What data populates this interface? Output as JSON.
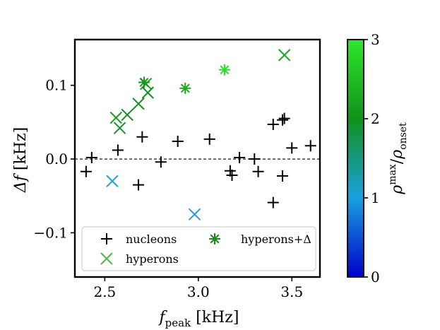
{
  "chart_data": {
    "type": "scatter",
    "xlabel_main": "f",
    "xlabel_sub": "peak",
    "xlabel_unit": "[kHz]",
    "ylabel_main": "Δf",
    "ylabel_unit": "[kHz]",
    "xlim": [
      2.34,
      3.65
    ],
    "ylim": [
      -0.16,
      0.162
    ],
    "xticks": [
      2.5,
      3.0,
      3.5
    ],
    "xtick_labels": [
      "2.5",
      "3.0",
      "3.5"
    ],
    "yticks": [
      -0.1,
      0.0,
      0.1
    ],
    "ytick_labels": [
      "−0.1",
      "0.0",
      "0.1"
    ],
    "reference_line_y": 0.0,
    "legend": {
      "position": "lower-center",
      "entries": [
        {
          "marker": "plus",
          "label": "nucleons",
          "color": "#000000"
        },
        {
          "marker": "x",
          "label": "hyperons",
          "color": "#4fb84f"
        },
        {
          "marker": "star",
          "label": "hyperons+Δ",
          "color": "#1a8a1a"
        }
      ]
    },
    "colorbar": {
      "label_base": "ρ",
      "label_base_sup": "max",
      "label_sep": "/",
      "label_den": "ρ",
      "label_den_sub": "onset",
      "range": [
        0,
        3
      ],
      "ticks": [
        0,
        1,
        2,
        3
      ],
      "tick_labels": [
        "0",
        "1",
        "2",
        "3"
      ],
      "colors": [
        "#0000cc",
        "#19a0e0",
        "#10921a",
        "#2de82d"
      ]
    },
    "series": [
      {
        "name": "nucleons",
        "marker": "plus",
        "color": "#000000",
        "points": [
          {
            "x": 2.4,
            "y": -0.017
          },
          {
            "x": 2.43,
            "y": 0.002
          },
          {
            "x": 2.57,
            "y": 0.012
          },
          {
            "x": 2.68,
            "y": -0.035
          },
          {
            "x": 2.7,
            "y": 0.03
          },
          {
            "x": 2.8,
            "y": -0.004
          },
          {
            "x": 2.89,
            "y": 0.024
          },
          {
            "x": 3.06,
            "y": 0.027
          },
          {
            "x": 3.17,
            "y": -0.016
          },
          {
            "x": 3.18,
            "y": -0.022
          },
          {
            "x": 3.22,
            "y": 0.002
          },
          {
            "x": 3.3,
            "y": 0.0
          },
          {
            "x": 3.32,
            "y": -0.017
          },
          {
            "x": 3.4,
            "y": 0.047
          },
          {
            "x": 3.4,
            "y": -0.059
          },
          {
            "x": 3.45,
            "y": 0.053
          },
          {
            "x": 3.46,
            "y": 0.055
          },
          {
            "x": 3.45,
            "y": -0.023
          },
          {
            "x": 3.5,
            "y": 0.015
          },
          {
            "x": 3.6,
            "y": 0.018
          }
        ]
      },
      {
        "name": "hyperons",
        "marker": "x",
        "points": [
          {
            "x": 2.54,
            "y": -0.03,
            "c": 1.0
          },
          {
            "x": 2.56,
            "y": 0.056,
            "c": 2.2
          },
          {
            "x": 2.58,
            "y": 0.042,
            "c": 1.9
          },
          {
            "x": 2.62,
            "y": 0.06,
            "c": 2.0
          },
          {
            "x": 2.68,
            "y": 0.075,
            "c": 2.0
          },
          {
            "x": 2.72,
            "y": 0.102,
            "c": 2.3
          },
          {
            "x": 2.73,
            "y": 0.09,
            "c": 2.0
          },
          {
            "x": 2.98,
            "y": -0.075,
            "c": 1.0
          },
          {
            "x": 3.46,
            "y": 0.141,
            "c": 2.2
          }
        ]
      },
      {
        "name": "hyperons+Δ",
        "marker": "star",
        "points": [
          {
            "x": 2.71,
            "y": 0.104,
            "c": 2.1
          },
          {
            "x": 2.93,
            "y": 0.096,
            "c": 2.3
          },
          {
            "x": 3.14,
            "y": 0.121,
            "c": 2.9
          }
        ]
      }
    ]
  }
}
